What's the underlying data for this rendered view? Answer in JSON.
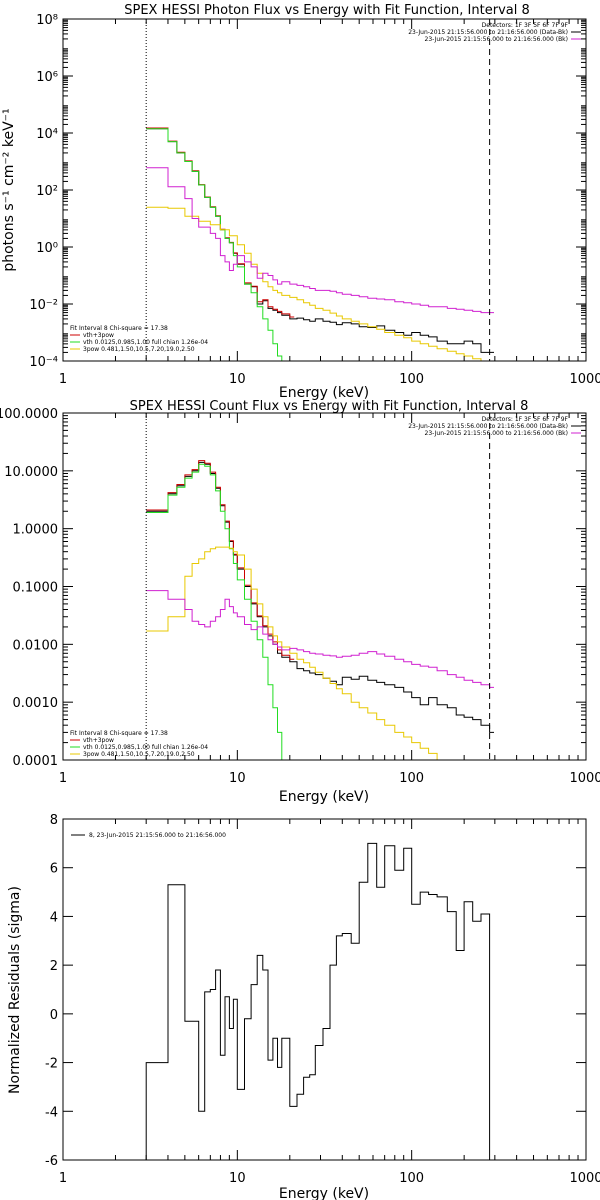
{
  "chart_data": [
    {
      "type": "line",
      "title": "SPEX HESSI Photon Flux vs Energy with Fit Function, Interval 8",
      "xlabel": "Energy (keV)",
      "ylabel": "photons s⁻¹ cm⁻² keV⁻¹",
      "xscale": "log",
      "yscale": "log",
      "xlim": [
        1,
        1000
      ],
      "ylim": [
        0.0001,
        100000000
      ],
      "x_ticks": [
        "1",
        "10",
        "100",
        "1000"
      ],
      "y_ticks": [
        "10⁻⁴",
        "10⁻²",
        "10⁰",
        "10²",
        "10⁴",
        "10⁶",
        "10⁸"
      ],
      "legend_top": [
        "Detectors: 1F 3F 5F 6F 7F 9F",
        "23-Jun-2015 21:15:56.000 to 21:16:56.000 (Data-Bk)",
        "23-Jun-2015 21:15:56.000 to 21:16:56.000 (Bk)"
      ],
      "legend_bottom": [
        "Fit Interval 8    Chi-square = 17.38",
        "vth+3pow",
        "vth 0.0125,0.985,1.00  full chian 1.26e-04",
        "3pow 0.481,1.50,10.5,7.20,19.0,2.50"
      ],
      "markers": {
        "dotted_x": 3,
        "dashed_x": 280
      },
      "series": [
        {
          "name": "Data-Bk",
          "color": "#000000",
          "x": [
            3,
            3.5,
            4,
            4.5,
            5,
            5.5,
            6,
            6.5,
            7,
            7.5,
            8,
            8.5,
            9,
            9.5,
            10,
            11,
            12,
            13,
            14,
            15,
            16,
            17,
            18,
            20,
            22,
            24,
            26,
            28,
            31,
            34,
            37,
            40,
            45,
            50,
            56,
            63,
            70,
            80,
            90,
            100,
            112,
            125,
            140,
            160,
            180,
            200,
            224,
            250,
            280
          ],
          "y": [
            14000,
            14000,
            5000,
            2000,
            1000,
            450,
            150,
            55,
            25,
            12,
            4,
            2,
            1.4,
            0.6,
            0.25,
            0.05,
            0.04,
            0.01,
            0.013,
            0.007,
            0.006,
            0.005,
            0.004,
            0.003,
            0.0032,
            0.0028,
            0.0025,
            0.003,
            0.0025,
            0.0023,
            0.0019,
            0.0022,
            0.002,
            0.0016,
            0.0015,
            0.0017,
            0.0012,
            0.001,
            0.0008,
            0.001,
            0.0008,
            0.0007,
            0.0005,
            0.0004,
            0.0004,
            0.0005,
            0.0004,
            0.0002,
            0.0002
          ]
        },
        {
          "name": "vth+3pow",
          "color": "#cc0000",
          "x": [
            3,
            3.5,
            4,
            4.5,
            5,
            5.5,
            6,
            6.5,
            7,
            7.5,
            8,
            8.5,
            9,
            9.5,
            10,
            11,
            12,
            13,
            14,
            15,
            16,
            17,
            18,
            20
          ],
          "y": [
            15000,
            15000,
            5200,
            2100,
            1050,
            470,
            155,
            57,
            26,
            12.5,
            4.2,
            2.1,
            1.45,
            0.62,
            0.26,
            0.055,
            0.042,
            0.012,
            0.014,
            0.008,
            0.0065,
            0.0055,
            0.0045,
            0.0035
          ]
        },
        {
          "name": "vth",
          "color": "#22dd22",
          "x": [
            3,
            3.5,
            4,
            4.5,
            5,
            5.5,
            6,
            6.5,
            7,
            7.5,
            8,
            8.5,
            9,
            9.5,
            10,
            11,
            12,
            13,
            14,
            15,
            16,
            17,
            18,
            20
          ],
          "y": [
            14000,
            14000,
            5000,
            2000,
            1000,
            450,
            150,
            55,
            25,
            12,
            4,
            2,
            1.4,
            0.5,
            0.2,
            0.05,
            0.025,
            0.008,
            0.003,
            0.0012,
            0.0004,
            0.00015,
            0.0001,
            0.0001
          ]
        },
        {
          "name": "3pow",
          "color": "#e8c800",
          "x": [
            3,
            4,
            5,
            6,
            7,
            8,
            9,
            10,
            11,
            12,
            13,
            14,
            15,
            16,
            17,
            18,
            20,
            22,
            24,
            26,
            28,
            31,
            34,
            37,
            40,
            45,
            50,
            56,
            63,
            70,
            80,
            90,
            100,
            112,
            125,
            140,
            160,
            180,
            200,
            224,
            250,
            280
          ],
          "y": [
            25,
            23,
            12,
            8,
            6,
            4,
            2.5,
            1.2,
            0.6,
            0.25,
            0.12,
            0.06,
            0.04,
            0.03,
            0.025,
            0.02,
            0.017,
            0.014,
            0.011,
            0.009,
            0.007,
            0.006,
            0.0048,
            0.0038,
            0.003,
            0.0025,
            0.002,
            0.0016,
            0.0013,
            0.001,
            0.0008,
            0.00065,
            0.0005,
            0.0004,
            0.00033,
            0.00027,
            0.00022,
            0.00018,
            0.00015,
            0.00012,
            0.0001,
            0.0001
          ]
        },
        {
          "name": "Bk",
          "color": "#d020d0",
          "x": [
            3,
            4,
            5,
            5.5,
            6,
            7,
            7.5,
            8,
            8.5,
            9,
            9.5,
            10,
            11,
            12,
            13,
            14,
            15,
            16,
            17,
            18,
            20,
            22,
            24,
            26,
            28,
            31,
            34,
            37,
            40,
            45,
            50,
            56,
            63,
            70,
            80,
            90,
            100,
            112,
            125,
            140,
            160,
            180,
            200,
            224,
            250,
            280
          ],
          "y": [
            600,
            130,
            50,
            10,
            5,
            3,
            2,
            0.5,
            0.3,
            0.15,
            0.25,
            0.5,
            0.3,
            0.2,
            0.08,
            0.12,
            0.1,
            0.07,
            0.05,
            0.06,
            0.05,
            0.045,
            0.04,
            0.035,
            0.03,
            0.03,
            0.028,
            0.025,
            0.022,
            0.02,
            0.018,
            0.016,
            0.015,
            0.014,
            0.012,
            0.011,
            0.01,
            0.009,
            0.008,
            0.008,
            0.007,
            0.0065,
            0.006,
            0.0055,
            0.005,
            0.005
          ]
        }
      ]
    },
    {
      "type": "line",
      "title": "SPEX HESSI Count Flux vs Energy with Fit Function, Interval 8",
      "xlabel": "Energy (keV)",
      "ylabel": "",
      "xscale": "log",
      "yscale": "log",
      "xlim": [
        1,
        1000
      ],
      "ylim": [
        0.0001,
        100
      ],
      "x_ticks": [
        "1",
        "10",
        "100",
        "1000"
      ],
      "y_ticks": [
        "0.0001",
        "0.0010",
        "0.0100",
        "0.1000",
        "1.0000",
        "10.0000",
        "100.0000"
      ],
      "legend_top": [
        "Detectors: 1F 3F 5F 6F 7F 9F",
        "23-Jun-2015 21:15:56.000 to 21:16:56.000 (Data-Bk)",
        "23-Jun-2015 21:15:56.000 to 21:16:56.000 (Bk)"
      ],
      "legend_bottom": [
        "Fit Interval 8    Chi-square = 17.38",
        "vth+3pow",
        "vth 0.0125,0.985,1.00  full chian 1.26e-04",
        "3pow 0.481,1.50,10.5,7.20,19.0,2.50"
      ],
      "markers": {
        "dotted_x": 3,
        "dashed_x": 280
      },
      "series": [
        {
          "name": "Data-Bk",
          "color": "#000000",
          "x": [
            3,
            3.5,
            4,
            4.5,
            5,
            5.5,
            6,
            6.5,
            7,
            7.5,
            8,
            8.5,
            9,
            9.5,
            10,
            11,
            12,
            13,
            14,
            15,
            16,
            17,
            18,
            20,
            22,
            24,
            26,
            28,
            31,
            34,
            37,
            40,
            45,
            50,
            56,
            63,
            70,
            80,
            90,
            100,
            112,
            125,
            140,
            160,
            180,
            200,
            224,
            250,
            280
          ],
          "y": [
            2,
            2,
            4,
            5.5,
            8,
            10,
            14,
            13,
            9,
            5,
            2.5,
            1.3,
            0.6,
            0.35,
            0.2,
            0.1,
            0.05,
            0.03,
            0.02,
            0.014,
            0.01,
            0.007,
            0.006,
            0.005,
            0.0038,
            0.0035,
            0.0032,
            0.003,
            0.0026,
            0.0023,
            0.002,
            0.0027,
            0.0025,
            0.0028,
            0.0024,
            0.0022,
            0.002,
            0.0018,
            0.0015,
            0.0012,
            0.0009,
            0.0012,
            0.0009,
            0.0008,
            0.0006,
            0.00055,
            0.0005,
            0.0004,
            0.0003
          ]
        },
        {
          "name": "vth+3pow",
          "color": "#cc0000",
          "x": [
            3,
            3.5,
            4,
            4.5,
            5,
            5.5,
            6,
            6.5,
            7,
            7.5,
            8,
            8.5,
            9,
            9.5,
            10,
            11,
            12,
            13,
            14,
            15,
            16,
            17,
            18,
            20
          ],
          "y": [
            2.1,
            2.1,
            4.2,
            5.8,
            8.5,
            10.5,
            15,
            13.5,
            9.5,
            5.2,
            2.6,
            1.35,
            0.62,
            0.36,
            0.21,
            0.105,
            0.052,
            0.031,
            0.021,
            0.015,
            0.011,
            0.008,
            0.0065,
            0.0055
          ]
        },
        {
          "name": "vth",
          "color": "#22dd22",
          "x": [
            3,
            3.5,
            4,
            4.5,
            5,
            5.5,
            6,
            6.5,
            7,
            7.5,
            8,
            8.5,
            9,
            9.5,
            10,
            11,
            12,
            13,
            14,
            15,
            16,
            17,
            18
          ],
          "y": [
            1.9,
            1.9,
            3.8,
            5.2,
            7.5,
            9.5,
            13,
            12,
            8.5,
            4.5,
            2,
            1,
            0.45,
            0.25,
            0.13,
            0.06,
            0.025,
            0.012,
            0.006,
            0.002,
            0.0008,
            0.0003,
            0.0001
          ]
        },
        {
          "name": "3pow",
          "color": "#e8c800",
          "x": [
            3,
            4,
            5,
            5.5,
            6,
            6.5,
            7,
            7.5,
            8,
            8.5,
            9,
            9.5,
            10,
            11,
            12,
            13,
            14,
            15,
            16,
            17,
            18,
            20,
            22,
            24,
            26,
            28,
            31,
            34,
            37,
            40,
            45,
            50,
            56,
            63,
            70,
            80,
            90,
            100,
            112,
            125,
            140,
            160,
            180,
            200,
            224,
            250,
            280
          ],
          "y": [
            0.017,
            0.03,
            0.15,
            0.25,
            0.3,
            0.4,
            0.45,
            0.48,
            0.48,
            0.48,
            0.46,
            0.4,
            0.35,
            0.2,
            0.09,
            0.05,
            0.03,
            0.02,
            0.014,
            0.011,
            0.009,
            0.007,
            0.0055,
            0.0048,
            0.004,
            0.0033,
            0.0026,
            0.0021,
            0.0017,
            0.0014,
            0.001,
            0.0008,
            0.00065,
            0.0005,
            0.0004,
            0.0003,
            0.00025,
            0.0002,
            0.00016,
            0.00013,
            0.0001,
            0.0001,
            0.0001,
            0.0001,
            0.0001,
            0.0001,
            0.0001
          ]
        },
        {
          "name": "Bk",
          "color": "#d020d0",
          "x": [
            3,
            4,
            5,
            5.5,
            6,
            6.5,
            7,
            7.5,
            8,
            8.5,
            9,
            9.5,
            10,
            11,
            12,
            13,
            14,
            15,
            16,
            17,
            18,
            20,
            22,
            24,
            26,
            28,
            31,
            34,
            37,
            40,
            45,
            50,
            56,
            63,
            70,
            80,
            90,
            100,
            112,
            125,
            140,
            160,
            180,
            200,
            224,
            250,
            280
          ],
          "y": [
            0.085,
            0.06,
            0.04,
            0.025,
            0.022,
            0.02,
            0.025,
            0.03,
            0.04,
            0.06,
            0.045,
            0.035,
            0.03,
            0.022,
            0.018,
            0.02,
            0.015,
            0.012,
            0.01,
            0.009,
            0.008,
            0.0085,
            0.008,
            0.0075,
            0.007,
            0.0068,
            0.0065,
            0.0063,
            0.006,
            0.0062,
            0.0065,
            0.007,
            0.0075,
            0.0068,
            0.0062,
            0.0055,
            0.005,
            0.0045,
            0.0042,
            0.004,
            0.0035,
            0.003,
            0.0027,
            0.0024,
            0.0022,
            0.002,
            0.0018
          ]
        }
      ]
    },
    {
      "type": "line",
      "title": "",
      "xlabel": "Energy (keV)",
      "ylabel": "Normalized Residuals (sigma)",
      "xscale": "log",
      "yscale": "linear",
      "xlim": [
        1,
        1000
      ],
      "ylim": [
        -6,
        8
      ],
      "x_ticks": [
        "1",
        "10",
        "100",
        "1000"
      ],
      "y_ticks": [
        "-6",
        "-4",
        "-2",
        "0",
        "2",
        "4",
        "6",
        "8"
      ],
      "legend": [
        "8, 23-Jun-2015 21:15:56.000 to 21:16:56.000"
      ],
      "series": [
        {
          "name": "8, 23-Jun-2015 21:15:56.000 to 21:16:56.000",
          "color": "#000000",
          "x": [
            3,
            4,
            4.5,
            5,
            5.5,
            6,
            6.5,
            7,
            7.5,
            8,
            8.5,
            9,
            9.5,
            10,
            11,
            12,
            13,
            14,
            15,
            16,
            17,
            18,
            20,
            22,
            24,
            26,
            28,
            31,
            34,
            37,
            40,
            45,
            50,
            56,
            63,
            70,
            80,
            90,
            100,
            112,
            125,
            140,
            160,
            180,
            200,
            224,
            250,
            280
          ],
          "y": [
            -2,
            5.3,
            5.3,
            -0.3,
            -0.3,
            -4,
            0.9,
            1,
            1.8,
            -1.7,
            0.7,
            -0.6,
            0.6,
            -3.1,
            -0.2,
            1.2,
            2.4,
            1.8,
            -1.9,
            -1,
            -2.2,
            -1,
            -3.8,
            -3.3,
            -2.6,
            -2.5,
            -1.3,
            -0.6,
            2,
            3.2,
            3.3,
            2.9,
            5.4,
            7,
            5.2,
            6.9,
            5.9,
            6.8,
            4.5,
            5,
            4.9,
            4.8,
            4.2,
            2.6,
            4.6,
            3.8,
            4.1,
            -6
          ]
        }
      ]
    }
  ]
}
